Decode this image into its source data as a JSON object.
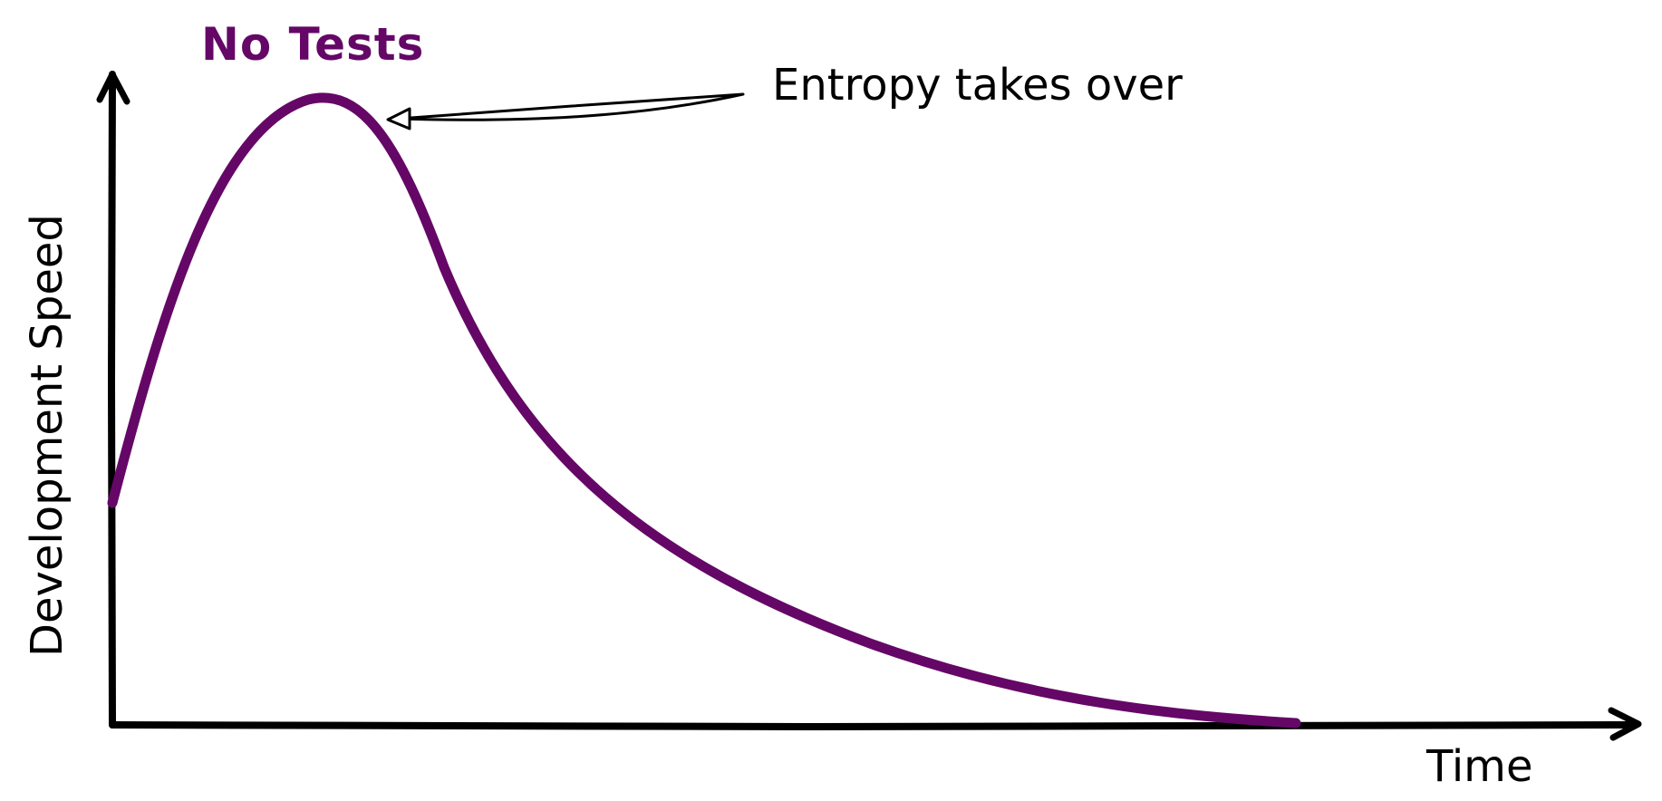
{
  "curve_title": "No Tests",
  "annotation": "Entropy takes over",
  "x_axis_label": "Time",
  "y_axis_label": "Development Speed",
  "colors": {
    "curve": "#650767",
    "ink": "#000000",
    "background": "#ffffff"
  }
}
